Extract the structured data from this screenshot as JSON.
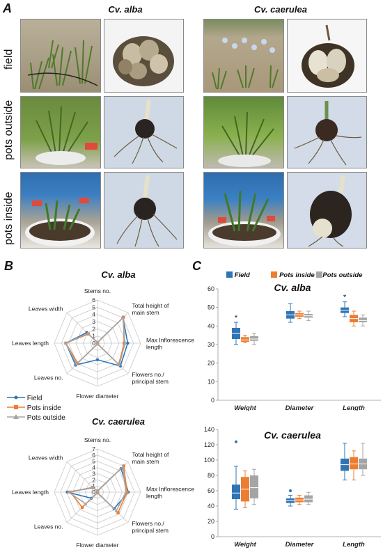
{
  "panelA": {
    "letter": "A",
    "cultivars": [
      "Cv. alba",
      "Cv. caerulea"
    ],
    "rows": [
      "field",
      "pots outside",
      "pots inside"
    ]
  },
  "panelB": {
    "letter": "B",
    "axes": [
      "Stems no.",
      "Total height of main stem",
      "Max Inflorescence length",
      "Flowers no./ principal stem",
      "Flower diameter",
      "Leaves no.",
      "Leaves length",
      "Leaves width"
    ],
    "legend": [
      "Field",
      "Pots inside",
      "Pots outside"
    ],
    "colors": [
      "#2e75b6",
      "#ed7d31",
      "#a5a5a5"
    ]
  },
  "panelC": {
    "letter": "C",
    "legend": [
      "Field",
      "Pots inside",
      "Pots outside"
    ],
    "categories": [
      "Weight",
      "Diameter",
      "Length"
    ],
    "colors": [
      "#2e75b6",
      "#ed7d31",
      "#a5a5a5"
    ]
  },
  "chart_data": [
    {
      "type": "radar",
      "title": "Cv. alba",
      "axes": [
        "Stems no.",
        "Total height of main stem",
        "Max Inflorescence length",
        "Flowers no./ principal stem",
        "Flower diameter",
        "Leaves no.",
        "Leaves length",
        "Leaves width"
      ],
      "rmax": 6,
      "ticks": [
        0,
        1,
        2,
        3,
        4,
        5,
        6
      ],
      "series": [
        {
          "name": "Field",
          "values": [
            0.1,
            5.0,
            4.2,
            4.5,
            2.3,
            4.3,
            4.4,
            2.1
          ]
        },
        {
          "name": "Pots inside",
          "values": [
            0.1,
            5.1,
            3.7,
            4.2,
            0.1,
            3.9,
            4.4,
            1.8
          ]
        },
        {
          "name": "Pots outside",
          "values": [
            0.1,
            5.0,
            3.8,
            4.3,
            0.1,
            4.1,
            4.4,
            1.9
          ]
        }
      ]
    },
    {
      "type": "radar",
      "title": "Cv. caerulea",
      "axes": [
        "Stems no.",
        "Total height of main stem",
        "Max Inflorescence length",
        "Flowers no./ principal stem",
        "Flower diameter",
        "Leaves no.",
        "Leaves length",
        "Leaves width"
      ],
      "rmax": 7,
      "ticks": [
        0,
        1,
        2,
        3,
        4,
        5,
        6,
        7
      ],
      "series": [
        {
          "name": "Field",
          "values": [
            0.2,
            5.4,
            5.0,
            3.8,
            0.1,
            1.4,
            4.9,
            1.0
          ]
        },
        {
          "name": "Pots inside",
          "values": [
            0.2,
            6.0,
            4.8,
            4.7,
            0.1,
            3.5,
            4.4,
            1.1
          ]
        },
        {
          "name": "Pots outside",
          "values": [
            0.2,
            5.8,
            4.6,
            4.3,
            0.1,
            2.7,
            4.7,
            1.1
          ]
        }
      ]
    },
    {
      "type": "boxplot",
      "title": "Cv. alba",
      "categories": [
        "Weight",
        "Diameter",
        "Length"
      ],
      "ylim": [
        0,
        60
      ],
      "yticks": [
        0,
        10,
        20,
        30,
        40,
        50,
        60
      ],
      "series": [
        {
          "name": "Field",
          "boxes": [
            {
              "min": 30,
              "q1": 33,
              "median": 36,
              "q3": 39,
              "max": 42,
              "star": "*"
            },
            {
              "min": 42,
              "q1": 44,
              "median": 46,
              "q3": 48,
              "max": 52
            },
            {
              "min": 45,
              "q1": 47,
              "median": 48.5,
              "q3": 50,
              "max": 53,
              "star": "*"
            }
          ]
        },
        {
          "name": "Pots inside",
          "boxes": [
            {
              "min": 31,
              "q1": 31.5,
              "median": 32.5,
              "q3": 34,
              "max": 35
            },
            {
              "min": 44,
              "q1": 45,
              "median": 46,
              "q3": 47,
              "max": 48
            },
            {
              "min": 40,
              "q1": 42,
              "median": 44,
              "q3": 46,
              "max": 48
            }
          ]
        },
        {
          "name": "Pots outside",
          "boxes": [
            {
              "min": 30,
              "q1": 32,
              "median": 33,
              "q3": 34.5,
              "max": 36
            },
            {
              "min": 43,
              "q1": 44.5,
              "median": 45.5,
              "q3": 46.5,
              "max": 48
            },
            {
              "min": 40,
              "q1": 42,
              "median": 43,
              "q3": 44.5,
              "max": 46
            }
          ]
        }
      ]
    },
    {
      "type": "boxplot",
      "title": "Cv. caerulea",
      "categories": [
        "Weight",
        "Diameter",
        "Length"
      ],
      "ylim": [
        0,
        140
      ],
      "yticks": [
        0,
        20,
        40,
        60,
        80,
        100,
        120,
        140
      ],
      "series": [
        {
          "name": "Field",
          "boxes": [
            {
              "min": 36,
              "q1": 49,
              "median": 57,
              "q3": 68,
              "max": 92,
              "outlier": 124
            },
            {
              "min": 40,
              "q1": 44,
              "median": 47,
              "q3": 50,
              "max": 54,
              "outlier": 60
            },
            {
              "min": 74,
              "q1": 86,
              "median": 94,
              "q3": 102,
              "max": 122
            }
          ]
        },
        {
          "name": "Pots inside",
          "boxes": [
            {
              "min": 38,
              "q1": 46,
              "median": 62,
              "q3": 78,
              "max": 86
            },
            {
              "min": 42,
              "q1": 45,
              "median": 48,
              "q3": 51,
              "max": 54
            },
            {
              "min": 74,
              "q1": 88,
              "median": 95,
              "q3": 104,
              "max": 112
            }
          ]
        },
        {
          "name": "Pots outside",
          "boxes": [
            {
              "min": 42,
              "q1": 50,
              "median": 64,
              "q3": 80,
              "max": 88
            },
            {
              "min": 42,
              "q1": 45,
              "median": 49,
              "q3": 54,
              "max": 58
            },
            {
              "min": 80,
              "q1": 88,
              "median": 95,
              "q3": 102,
              "max": 122
            }
          ]
        }
      ]
    }
  ]
}
